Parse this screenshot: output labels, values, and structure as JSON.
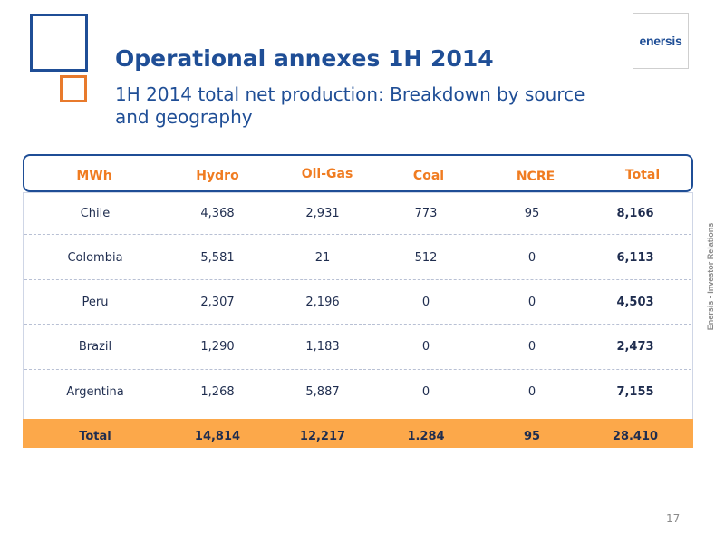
{
  "slide": {
    "title": "Operational annexes 1H 2014",
    "subtitle": "1H 2014 total net production: Breakdown by source and geography",
    "logo_text": "enersis",
    "side_label": "Enersis - Investor Relations",
    "page_number": "17"
  },
  "colors": {
    "brand_blue": "#1f4e96",
    "accent_orange": "#f07c21",
    "total_row_bg": "#fca84a"
  },
  "table": {
    "headers": [
      "MWh",
      "Hydro",
      "Oil-Gas",
      "Coal",
      "NCRE",
      "Total"
    ],
    "rows": [
      [
        "Chile",
        "4,368",
        "2,931",
        "773",
        "95",
        "8,166"
      ],
      [
        "Colombia",
        "5,581",
        "21",
        "512",
        "0",
        "6,113"
      ],
      [
        "Peru",
        "2,307",
        "2,196",
        "0",
        "0",
        "4,503"
      ],
      [
        "Brazil",
        "1,290",
        "1,183",
        "0",
        "0",
        "2,473"
      ],
      [
        "Argentina",
        "1,268",
        "5,887",
        "0",
        "0",
        "7,155"
      ]
    ],
    "total_row": [
      "Total",
      "14,814",
      "12,217",
      "1.284",
      "95",
      "28.410"
    ]
  }
}
